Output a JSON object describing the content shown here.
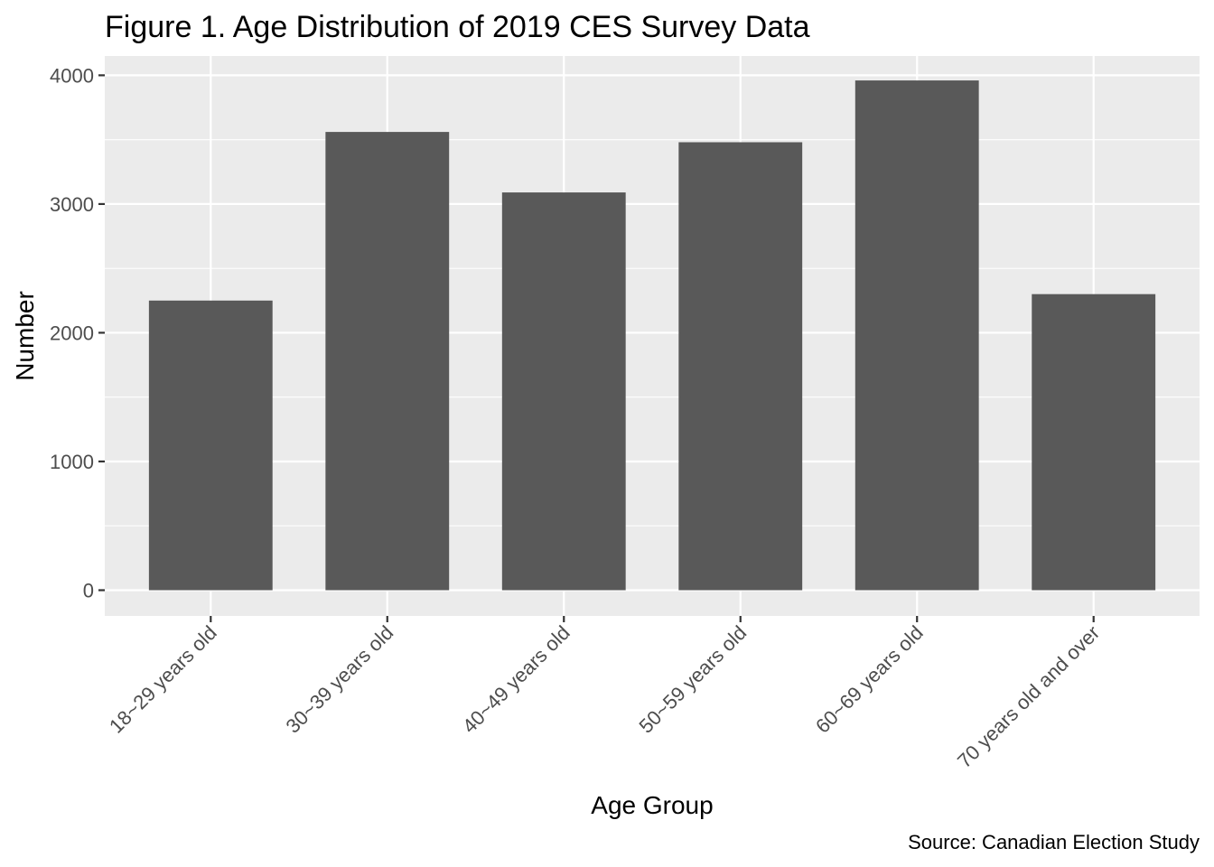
{
  "chart_data": {
    "type": "bar",
    "title": "Figure 1. Age Distribution of 2019 CES Survey Data",
    "caption": "Source: Canadian Election Study",
    "xlabel": "Age Group",
    "ylabel": "Number",
    "categories": [
      "18~29 years old",
      "30~39 years old",
      "40~49 years old",
      "50~59 years old",
      "60~69 years old",
      "70 years old and over"
    ],
    "values": [
      2250,
      3560,
      3090,
      3480,
      3960,
      2300
    ],
    "ylim": [
      -200,
      4150
    ],
    "yticks": [
      0,
      1000,
      2000,
      3000,
      4000
    ],
    "grid": true,
    "legend": "none",
    "colors": {
      "bar": "#595959",
      "panel": "#ebebeb",
      "grid": "#ffffff",
      "tick_text": "#4d4d4d",
      "tick_mark": "#333333"
    }
  }
}
